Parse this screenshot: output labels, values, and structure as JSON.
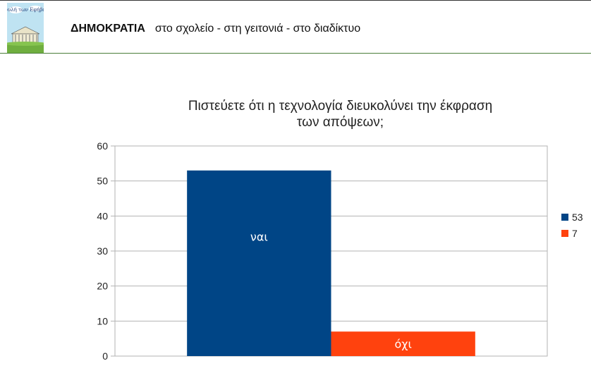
{
  "header": {
    "logo_text": "Βουλή των Εφήβων",
    "title_bold": "ΔΗΜΟΚΡΑΤΙΑ",
    "title_rest": "στο σχολείο - στη γειτονιά - στο διαδίκτυο"
  },
  "chart_data": {
    "type": "bar",
    "title": [
      "Πιστεύετε ότι η τεχνολογία διευκολύνει την έκφραση",
      "των απόψεων;"
    ],
    "xlabel": "",
    "ylabel": "",
    "ylim": [
      0,
      60
    ],
    "yticks": [
      "0",
      "10",
      "20",
      "30",
      "40",
      "50",
      "60"
    ],
    "grid": true,
    "legend_position": "right",
    "series": [
      {
        "name": "53",
        "category": "ναι",
        "value": 53,
        "color": "#004586"
      },
      {
        "name": "7",
        "category": "όχι",
        "value": 7,
        "color": "#ff420e"
      }
    ]
  }
}
